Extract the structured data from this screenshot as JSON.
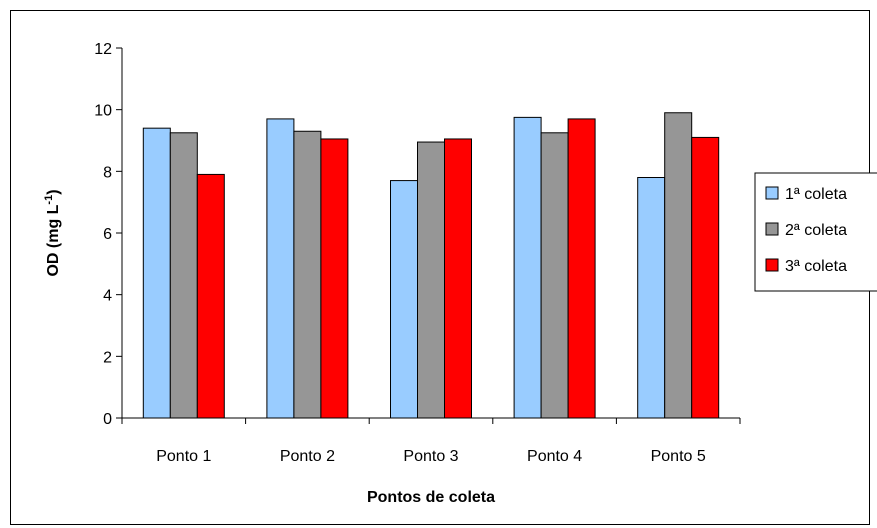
{
  "chart_data": {
    "type": "bar",
    "title": "",
    "xlabel": "Pontos de coleta",
    "ylabel_main": "OD (mg L",
    "ylabel_sup": "-1",
    "ylabel_close": ")",
    "ylim": [
      0,
      12
    ],
    "yticks": [
      "0",
      "2",
      "4",
      "6",
      "8",
      "10",
      "12"
    ],
    "grid": false,
    "legend_position": "right",
    "categories": [
      "Ponto 1",
      "Ponto 2",
      "Ponto 3",
      "Ponto 4",
      "Ponto 5"
    ],
    "series": [
      {
        "name": "1ª coleta",
        "color": "#99ccff",
        "values": [
          9.4,
          9.7,
          7.7,
          9.75,
          7.8
        ]
      },
      {
        "name": "2ª coleta",
        "color": "#969696",
        "values": [
          9.25,
          9.3,
          8.95,
          9.25,
          9.9
        ]
      },
      {
        "name": "3ª coleta",
        "color": "#ff0000",
        "values": [
          7.9,
          9.05,
          9.05,
          9.7,
          9.1
        ]
      }
    ]
  }
}
